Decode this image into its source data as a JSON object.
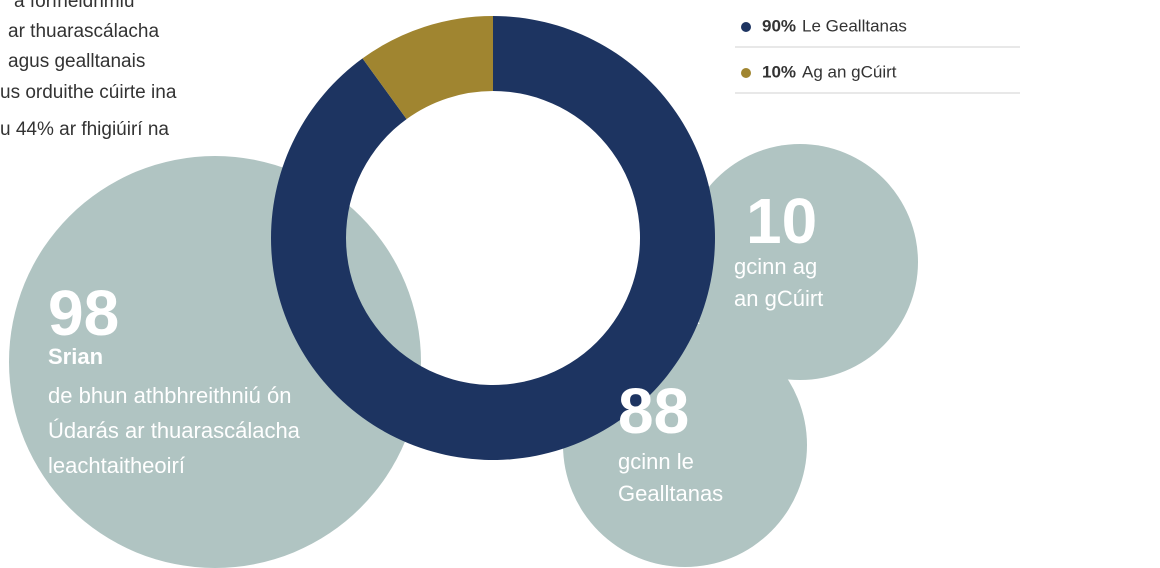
{
  "intro_lines": [
    "a forfheidhmiú",
    "ar thuarascálacha",
    "agus gealltanais",
    "us orduithe cúirte ina",
    "u 44% ar fhigiúirí na"
  ],
  "chart_data": {
    "type": "pie",
    "donut": true,
    "categories": [
      "Le Gealltanas",
      "Ag an gCúirt"
    ],
    "values": [
      90,
      10
    ],
    "value_labels": [
      "90%",
      "10%"
    ],
    "colors": [
      "#1d3461",
      "#a08530"
    ]
  },
  "callouts": [
    {
      "number": 98,
      "lines": [
        "Srian",
        "de bhun athbhreithniú ón",
        "Údarás ar thuarascálacha",
        "leachtaitheoirí"
      ]
    },
    {
      "number": 10,
      "lines": [
        "gcinn ag",
        "an gCúirt"
      ]
    },
    {
      "number": 88,
      "lines": [
        "gcinn le",
        "Gealltanas"
      ]
    }
  ]
}
